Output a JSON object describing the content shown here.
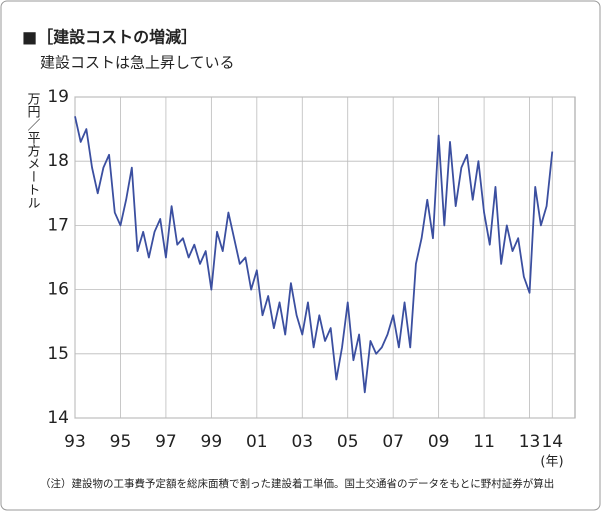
{
  "chart_data": {
    "type": "line",
    "title": "■［建設コストの増減］",
    "subtitle": "建設コストは急上昇している",
    "y_label": "万円／平方メートル",
    "x_unit": "(年)",
    "note": "（注）建設物の工事費予定額を総床面積で割った建設着工単価。国土交通省のデータをもとに野村証券が算出",
    "x": [
      1993,
      1993.25,
      1993.5,
      1993.75,
      1994,
      1994.25,
      1994.5,
      1994.75,
      1995,
      1995.25,
      1995.5,
      1995.75,
      1996,
      1996.25,
      1996.5,
      1996.75,
      1997,
      1997.25,
      1997.5,
      1997.75,
      1998,
      1998.25,
      1998.5,
      1998.75,
      1999,
      1999.25,
      1999.5,
      1999.75,
      2000,
      2000.25,
      2000.5,
      2000.75,
      2001,
      2001.25,
      2001.5,
      2001.75,
      2002,
      2002.25,
      2002.5,
      2002.75,
      2003,
      2003.25,
      2003.5,
      2003.75,
      2004,
      2004.25,
      2004.5,
      2004.75,
      2005,
      2005.25,
      2005.5,
      2005.75,
      2006,
      2006.25,
      2006.5,
      2006.75,
      2007,
      2007.25,
      2007.5,
      2007.75,
      2008,
      2008.25,
      2008.5,
      2008.75,
      2009,
      2009.25,
      2009.5,
      2009.75,
      2010,
      2010.25,
      2010.5,
      2010.75,
      2011,
      2011.25,
      2011.5,
      2011.75,
      2012,
      2012.25,
      2012.5,
      2012.75,
      2013,
      2013.25,
      2013.5,
      2013.75,
      2014
    ],
    "series": [
      {
        "name": "建設着工単価",
        "color": "#3b4fa0",
        "values": [
          18.7,
          18.3,
          18.5,
          17.9,
          17.5,
          17.9,
          18.1,
          17.2,
          17.0,
          17.4,
          17.9,
          16.6,
          16.9,
          16.5,
          16.9,
          17.1,
          16.5,
          17.3,
          16.7,
          16.8,
          16.5,
          16.7,
          16.4,
          16.6,
          16.0,
          16.9,
          16.6,
          17.2,
          16.8,
          16.4,
          16.5,
          16.0,
          16.3,
          15.6,
          15.9,
          15.4,
          15.8,
          15.3,
          16.1,
          15.6,
          15.3,
          15.8,
          15.1,
          15.6,
          15.2,
          15.4,
          14.6,
          15.1,
          15.8,
          14.9,
          15.3,
          14.4,
          15.2,
          15.0,
          15.1,
          15.3,
          15.6,
          15.1,
          15.8,
          15.1,
          16.4,
          16.8,
          17.4,
          16.8,
          18.4,
          17.0,
          18.3,
          17.3,
          17.9,
          18.1,
          17.4,
          18.0,
          17.2,
          16.7,
          17.6,
          16.4,
          17.0,
          16.6,
          16.8,
          16.2,
          15.95,
          17.6,
          17.0,
          17.3,
          18.15
        ]
      }
    ],
    "xlim": [
      1993,
      2015
    ],
    "xticks": [
      {
        "value": 1993,
        "label": "93"
      },
      {
        "value": 1995,
        "label": "95"
      },
      {
        "value": 1997,
        "label": "97"
      },
      {
        "value": 1999,
        "label": "99"
      },
      {
        "value": 2001,
        "label": "01"
      },
      {
        "value": 2003,
        "label": "03"
      },
      {
        "value": 2005,
        "label": "05"
      },
      {
        "value": 2007,
        "label": "07"
      },
      {
        "value": 2009,
        "label": "09"
      },
      {
        "value": 2011,
        "label": "11"
      },
      {
        "value": 2013,
        "label": "13"
      },
      {
        "value": 2014,
        "label": "14"
      }
    ],
    "ylim": [
      14,
      19
    ],
    "yticks": [
      14,
      15,
      16,
      17,
      18,
      19
    ],
    "grid": true
  }
}
